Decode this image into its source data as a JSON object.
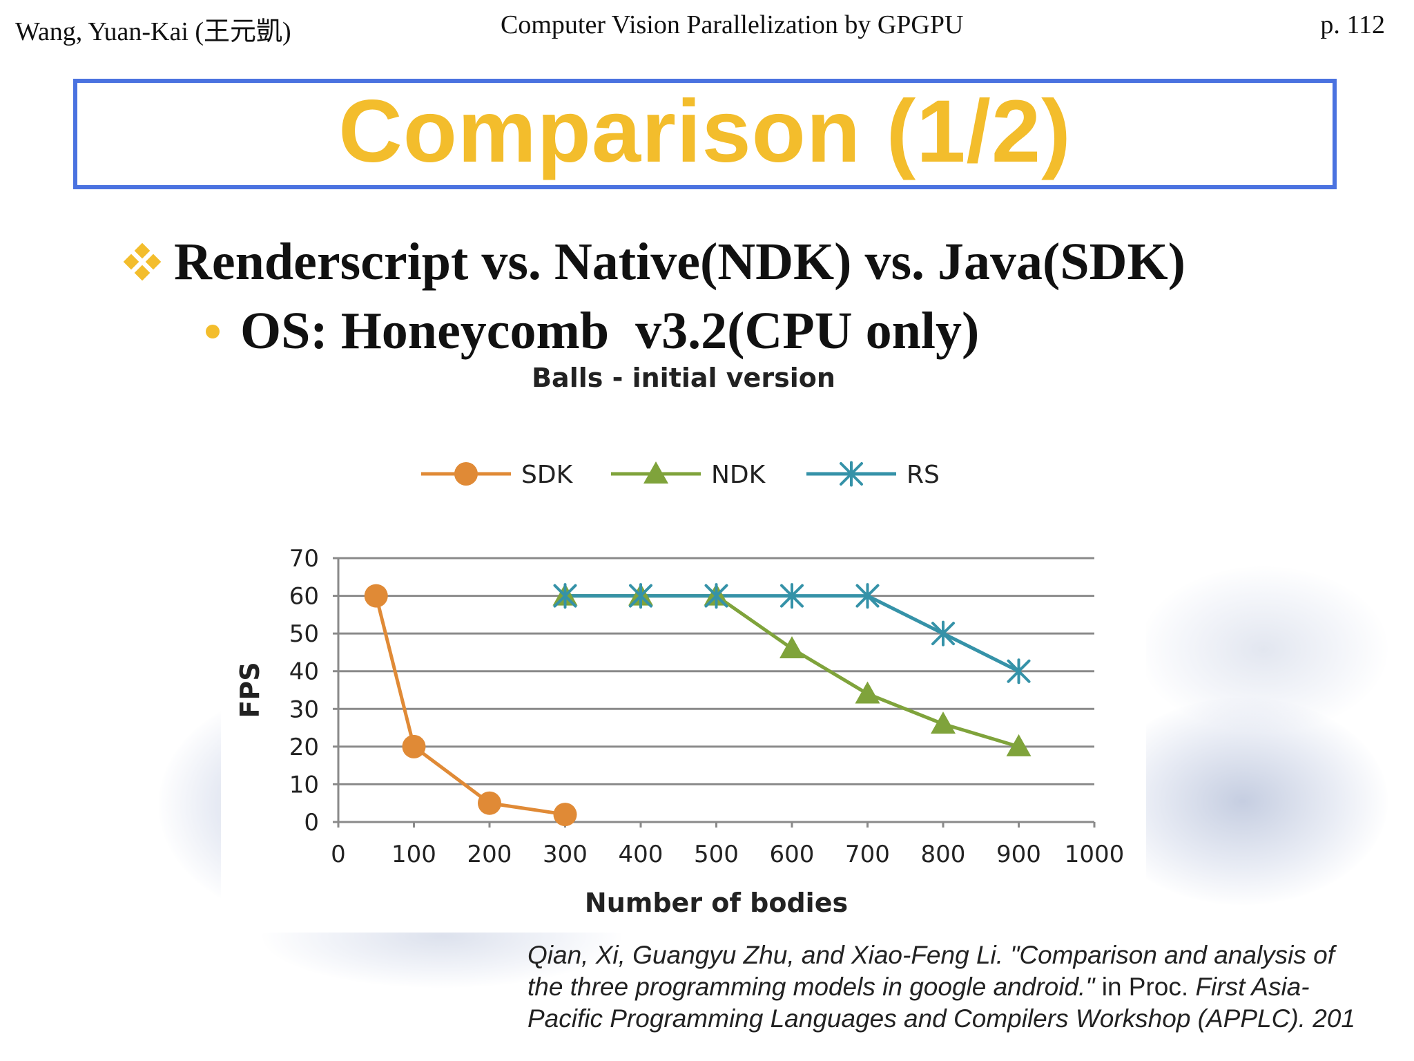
{
  "header": {
    "author": "Wang, Yuan-Kai (王元凱)",
    "course": "Computer Vision Parallelization by GPGPU",
    "page": "p. 112"
  },
  "slide": {
    "title": "Comparison (1/2)",
    "bullet_1": "Renderscript vs. Native(NDK) vs. Java(SDK)",
    "bullet_2": "OS: Honeycomb  v3.2(CPU only)"
  },
  "icons": {
    "bullet_1": "diamond-bullet-icon",
    "bullet_2": "dot-bullet-icon"
  },
  "colors": {
    "title": "#f3bd2c",
    "title_border": "#4a72e0",
    "sdk": "#e08a36",
    "ndk": "#7fa33b",
    "rs": "#3592a8"
  },
  "chart_data": {
    "type": "line",
    "title": "Balls - initial version",
    "xlabel": "Number of bodies",
    "ylabel": "FPS",
    "xlim": [
      0,
      1000
    ],
    "ylim": [
      0,
      70
    ],
    "x_ticks": [
      0,
      100,
      200,
      300,
      400,
      500,
      600,
      700,
      800,
      900,
      1000
    ],
    "y_ticks": [
      0,
      10,
      20,
      30,
      40,
      50,
      60,
      70
    ],
    "grid": "horizontal",
    "legend": "top",
    "series": [
      {
        "name": "SDK",
        "marker": "circle",
        "color": "#e08a36",
        "points": [
          [
            50,
            60
          ],
          [
            100,
            20
          ],
          [
            200,
            5
          ],
          [
            300,
            2
          ]
        ]
      },
      {
        "name": "NDK",
        "marker": "triangle",
        "color": "#7fa33b",
        "points": [
          [
            300,
            60
          ],
          [
            400,
            60
          ],
          [
            500,
            60
          ],
          [
            600,
            46
          ],
          [
            700,
            34
          ],
          [
            800,
            26
          ],
          [
            900,
            20
          ]
        ]
      },
      {
        "name": "RS",
        "marker": "asterisk",
        "color": "#3592a8",
        "points": [
          [
            300,
            60
          ],
          [
            400,
            60
          ],
          [
            500,
            60
          ],
          [
            600,
            60
          ],
          [
            700,
            60
          ],
          [
            800,
            50
          ],
          [
            900,
            40
          ]
        ]
      }
    ]
  },
  "citation": {
    "part1": "Qian, Xi, Guangyu Zhu, and Xiao-Feng Li. \"Comparison and analysis of",
    "part2": "the three programming models in google android.\"",
    "part3": " in Proc. ",
    "part4": "First Asia-",
    "part5": "Pacific Programming Languages and Compilers Workshop (APPLC). 201"
  }
}
